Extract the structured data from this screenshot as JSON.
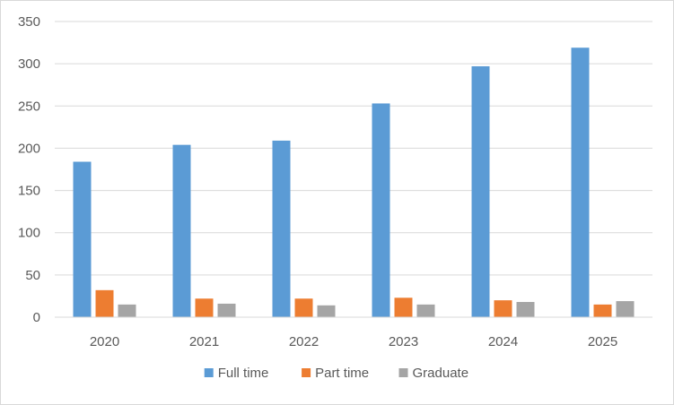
{
  "chart_data": {
    "type": "bar",
    "title": "",
    "xlabel": "",
    "ylabel": "",
    "categories": [
      "2020",
      "2021",
      "2022",
      "2023",
      "2024",
      "2025"
    ],
    "ylim": [
      0,
      350
    ],
    "yticks": [
      0,
      50,
      100,
      150,
      200,
      250,
      300,
      350
    ],
    "grid": true,
    "legend_position": "bottom",
    "series": [
      {
        "name": "Full time",
        "color": "#5b9bd5",
        "values": [
          184,
          204,
          209,
          253,
          297,
          319
        ]
      },
      {
        "name": "Part time",
        "color": "#ed7d31",
        "values": [
          32,
          22,
          22,
          23,
          20,
          15
        ]
      },
      {
        "name": "Graduate",
        "color": "#a5a5a5",
        "values": [
          15,
          16,
          14,
          15,
          18,
          19
        ]
      }
    ]
  }
}
